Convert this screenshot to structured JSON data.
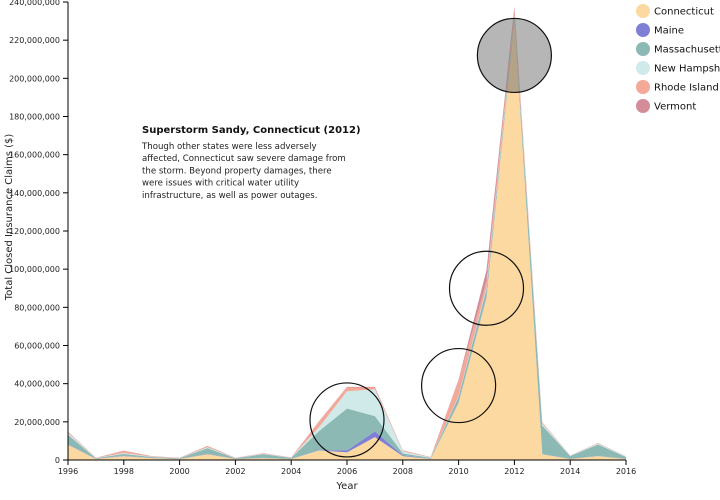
{
  "chart_data": {
    "type": "area",
    "stacked": true,
    "xlabel": "Year",
    "ylabel": "Total Closed Insurance Claims ($)",
    "xlim": [
      1996,
      2016
    ],
    "ylim": [
      0,
      240000000
    ],
    "x_ticks": [
      1996,
      1998,
      2000,
      2002,
      2004,
      2006,
      2008,
      2010,
      2012,
      2014,
      2016
    ],
    "y_ticks": [
      0,
      20000000,
      40000000,
      60000000,
      80000000,
      100000000,
      120000000,
      140000000,
      160000000,
      180000000,
      200000000,
      220000000,
      240000000
    ],
    "x_tick_labels": [
      "1996",
      "1998",
      "2000",
      "2002",
      "2004",
      "2006",
      "2008",
      "2010",
      "2012",
      "2014",
      "2016"
    ],
    "y_tick_labels": [
      "0",
      "20,000,000",
      "40,000,000",
      "60,000,000",
      "80,000,000",
      "100,000,000",
      "120,000,000",
      "140,000,000",
      "160,000,000",
      "180,000,000",
      "200,000,000",
      "220,000,000",
      "240,000,000"
    ],
    "x": [
      1996,
      1997,
      1998,
      1999,
      2000,
      2001,
      2002,
      2003,
      2004,
      2005,
      2006,
      2007,
      2008,
      2009,
      2010,
      2011,
      2012,
      2013,
      2014,
      2015,
      2016
    ],
    "series": [
      {
        "name": "Connecticut",
        "color": "#fcd9a0",
        "values": [
          8000000,
          500000,
          2000000,
          1000000,
          500000,
          3000000,
          500000,
          1000000,
          500000,
          5000000,
          4000000,
          12000000,
          2000000,
          500000,
          30000000,
          85000000,
          230000000,
          3000000,
          500000,
          2000000,
          500000
        ]
      },
      {
        "name": "Maine",
        "color": "#7f7fd5",
        "values": [
          200000,
          100000,
          200000,
          100000,
          100000,
          200000,
          100000,
          100000,
          100000,
          200000,
          1000000,
          3000000,
          500000,
          100000,
          200000,
          500000,
          200000,
          100000,
          100000,
          100000,
          100000
        ]
      },
      {
        "name": "Massachusetts",
        "color": "#8db9b5",
        "values": [
          5000000,
          300000,
          1000000,
          500000,
          300000,
          3000000,
          300000,
          2000000,
          500000,
          10000000,
          22000000,
          8000000,
          1000000,
          500000,
          3000000,
          4000000,
          2000000,
          15000000,
          1500000,
          6000000,
          1000000
        ]
      },
      {
        "name": "New Hampshire",
        "color": "#cfeae8",
        "values": [
          1000000,
          100000,
          500000,
          100000,
          100000,
          500000,
          100000,
          200000,
          100000,
          2000000,
          9000000,
          14000000,
          1000000,
          200000,
          500000,
          1000000,
          500000,
          1000000,
          200000,
          500000,
          200000
        ]
      },
      {
        "name": "Rhode Island",
        "color": "#f4a898",
        "values": [
          500000,
          100000,
          1000000,
          200000,
          100000,
          500000,
          100000,
          200000,
          100000,
          3000000,
          2000000,
          1000000,
          500000,
          200000,
          8000000,
          3000000,
          3000000,
          500000,
          100000,
          200000,
          100000
        ]
      },
      {
        "name": "Vermont",
        "color": "#d48c98",
        "values": [
          200000,
          50000,
          200000,
          100000,
          50000,
          200000,
          50000,
          100000,
          50000,
          200000,
          300000,
          300000,
          100000,
          50000,
          500000,
          6000000,
          2000000,
          200000,
          50000,
          100000,
          50000
        ]
      }
    ],
    "highlights": [
      {
        "year": 2006.0,
        "value": 21000000,
        "filled": false
      },
      {
        "year": 2010.0,
        "value": 39000000,
        "filled": false
      },
      {
        "year": 2011.0,
        "value": 90000000,
        "filled": false
      },
      {
        "year": 2012.0,
        "value": 212000000,
        "filled": true
      }
    ],
    "annotation": {
      "title": "Superstorm Sandy, Connecticut (2012)",
      "lines": [
        "Though other states were less adversely",
        "affected, Connecticut saw severe damage from",
        "the storm. Beyond property damages, there",
        "were issues with critical water utility",
        "infrastructure, as well as power outages."
      ]
    },
    "legend_position": "top-right"
  }
}
